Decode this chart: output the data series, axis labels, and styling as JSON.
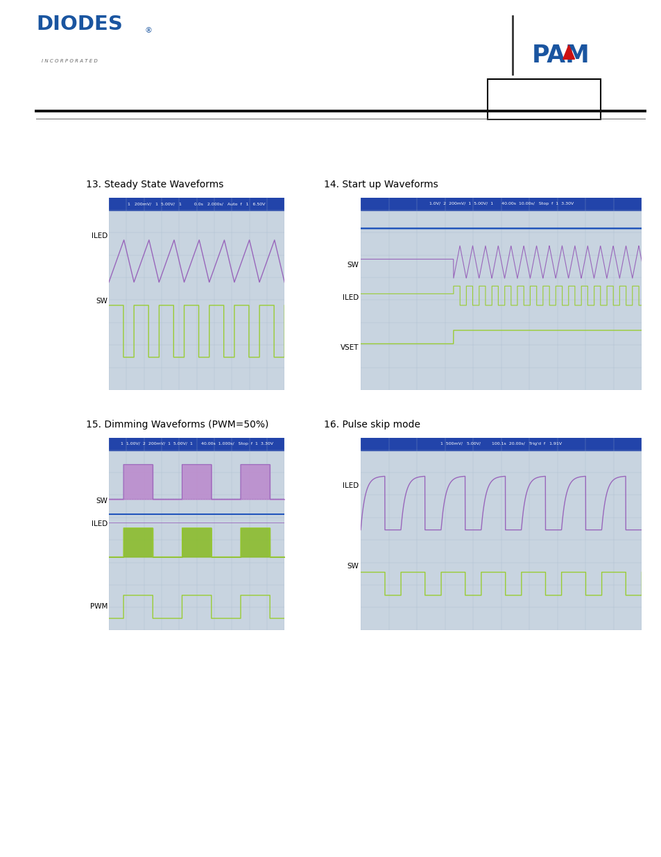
{
  "charts": [
    {
      "title": "13. Steady State Waveforms",
      "header_color": "#2244aa",
      "header_text": "1   200mV/   1  5.00V/   1         0.0s   2.000s/   Auto  f   1   6.50V",
      "bg_color": "#c8d4e0",
      "grid_color": "#a0b4c8"
    },
    {
      "title": "14. Start up Waveforms",
      "header_color": "#2244aa",
      "header_text": "1.0V/  2  200mV/  1  5.00V/  1      40.00s  10.00s/   Stop  f  1  3.30V",
      "bg_color": "#c8d4e0",
      "grid_color": "#a0b4c8"
    },
    {
      "title": "15. Dimming Waveforms (PWM=50%)",
      "header_color": "#2244aa",
      "header_text": "1  1.00V/  2  200mV/  1  5.00V/  1      40.00s  1.000s/   Stop  f  1  3.30V",
      "bg_color": "#c8d4e0",
      "grid_color": "#a0b4c8"
    },
    {
      "title": "16. Pulse skip mode",
      "header_color": "#2244aa",
      "header_text": "1  500mV/   5.00V/        100.1s  20.00s/   Trig'd  f   1.91V",
      "bg_color": "#c8d4e0",
      "grid_color": "#a0b4c8"
    }
  ],
  "purple": "#9966bb",
  "green": "#99cc33",
  "blue_line": "#2255bb",
  "purple_fill": "#bb88cc",
  "green_fill": "#88bb22",
  "diodes_blue": "#1a55a0",
  "pam_blue": "#1a55a0",
  "title_fontsize": 10,
  "label_fontsize": 7.5,
  "header_fontsize": 4.5,
  "background": "#ffffff"
}
